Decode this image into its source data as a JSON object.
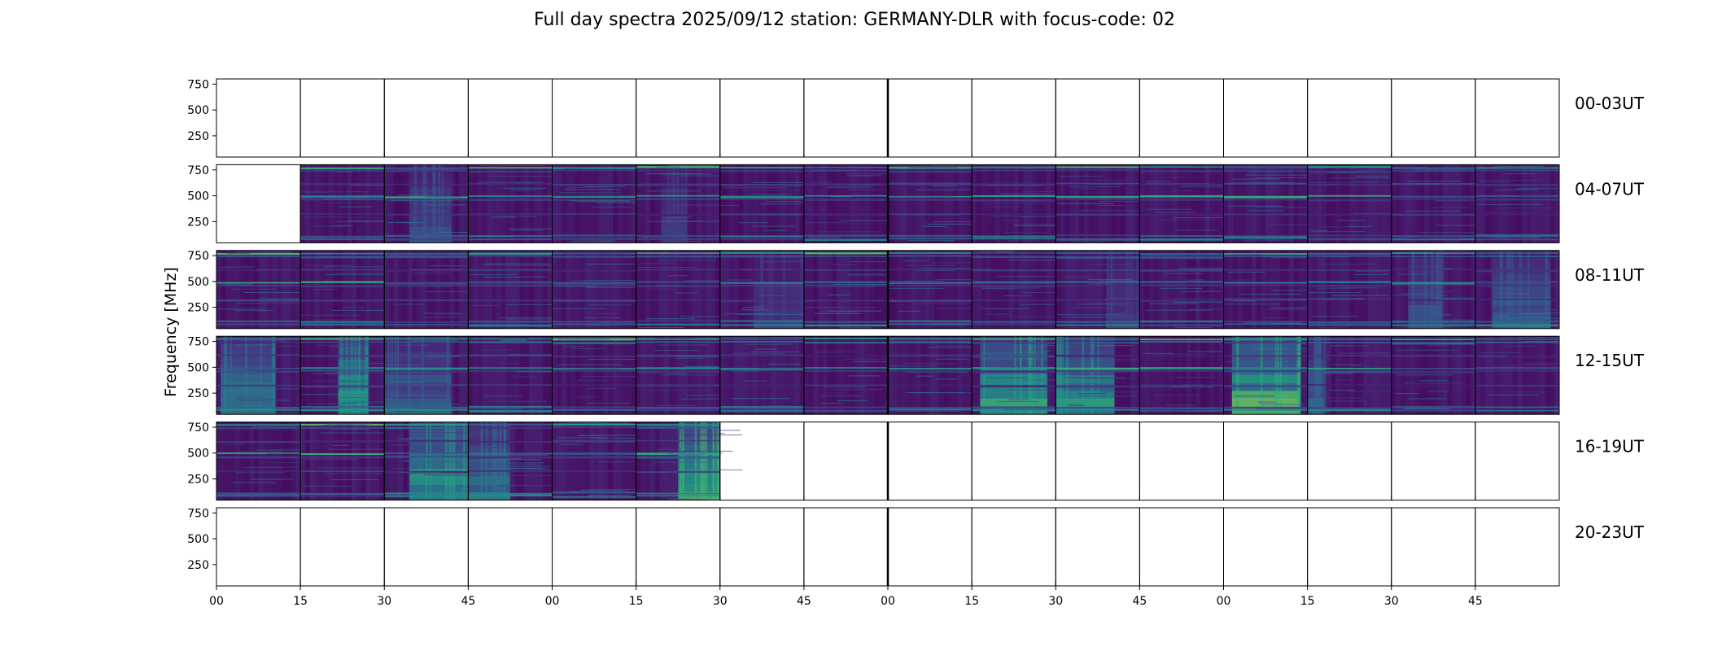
{
  "chart_data": {
    "type": "heatmap",
    "title": "Full day spectra 2025/09/12 station: GERMANY-DLR with focus-code: 02",
    "ylabel": "Frequency [MHz]",
    "xlabel": "",
    "ylim": [
      45,
      800
    ],
    "y_ticks": [
      "750",
      "500",
      "250"
    ],
    "y_tick_values": [
      750,
      500,
      250
    ],
    "x_ticks": [
      "00",
      "15",
      "30",
      "45",
      "00",
      "15",
      "30",
      "45",
      "00",
      "15",
      "30",
      "45",
      "00",
      "15",
      "30",
      "45"
    ],
    "panel_minutes": 15,
    "colormap": "viridis",
    "rows": [
      {
        "label": "00-03UT",
        "panels": [
          0,
          0,
          0,
          0,
          0,
          0,
          0,
          0,
          0,
          0,
          0,
          0,
          0,
          0,
          0,
          0
        ]
      },
      {
        "label": "04-07UT",
        "panels": [
          0,
          1,
          1,
          1,
          1,
          1,
          1,
          1,
          1,
          1,
          1,
          1,
          1,
          1,
          1,
          1
        ]
      },
      {
        "label": "08-11UT",
        "panels": [
          1,
          1,
          1,
          1,
          1,
          1,
          1,
          1,
          1,
          1,
          1,
          1,
          1,
          1,
          1,
          1
        ]
      },
      {
        "label": "12-15UT",
        "panels": [
          1,
          1,
          1,
          1,
          1,
          1,
          1,
          1,
          1,
          1,
          1,
          1,
          1,
          1,
          1,
          1
        ]
      },
      {
        "label": "16-19UT",
        "panels": [
          1,
          1,
          1,
          1,
          1,
          1,
          0,
          0,
          0,
          0,
          0,
          0,
          0,
          0,
          0,
          0
        ]
      },
      {
        "label": "20-23UT",
        "panels": [
          0,
          0,
          0,
          0,
          0,
          0,
          0,
          0,
          0,
          0,
          0,
          0,
          0,
          0,
          0,
          0
        ]
      }
    ],
    "bright_bursts": [
      {
        "row": 3,
        "panel": 0,
        "start": 0.05,
        "end": 0.7,
        "strength": 0.45
      },
      {
        "row": 3,
        "panel": 1,
        "start": 0.45,
        "end": 0.8,
        "strength": 0.6
      },
      {
        "row": 3,
        "panel": 2,
        "start": 0.0,
        "end": 0.8,
        "strength": 0.35
      },
      {
        "row": 3,
        "panel": 9,
        "start": 0.1,
        "end": 0.9,
        "strength": 0.65
      },
      {
        "row": 3,
        "panel": 10,
        "start": 0.0,
        "end": 0.7,
        "strength": 0.6
      },
      {
        "row": 3,
        "panel": 12,
        "start": 0.1,
        "end": 0.9,
        "strength": 0.7
      },
      {
        "row": 3,
        "panel": 13,
        "start": 0.0,
        "end": 0.2,
        "strength": 0.35
      },
      {
        "row": 4,
        "panel": 2,
        "start": 0.3,
        "end": 1.0,
        "strength": 0.65
      },
      {
        "row": 4,
        "panel": 3,
        "start": 0.0,
        "end": 0.5,
        "strength": 0.45
      },
      {
        "row": 4,
        "panel": 5,
        "start": 0.5,
        "end": 1.0,
        "strength": 0.8
      },
      {
        "row": 1,
        "panel": 2,
        "start": 0.3,
        "end": 0.8,
        "strength": 0.3
      },
      {
        "row": 1,
        "panel": 5,
        "start": 0.3,
        "end": 0.6,
        "strength": 0.2
      },
      {
        "row": 2,
        "panel": 6,
        "start": 0.4,
        "end": 1.0,
        "strength": 0.2
      },
      {
        "row": 2,
        "panel": 10,
        "start": 0.6,
        "end": 1.0,
        "strength": 0.2
      },
      {
        "row": 2,
        "panel": 14,
        "start": 0.2,
        "end": 0.6,
        "strength": 0.3
      },
      {
        "row": 2,
        "panel": 15,
        "start": 0.2,
        "end": 0.9,
        "strength": 0.35
      }
    ]
  }
}
